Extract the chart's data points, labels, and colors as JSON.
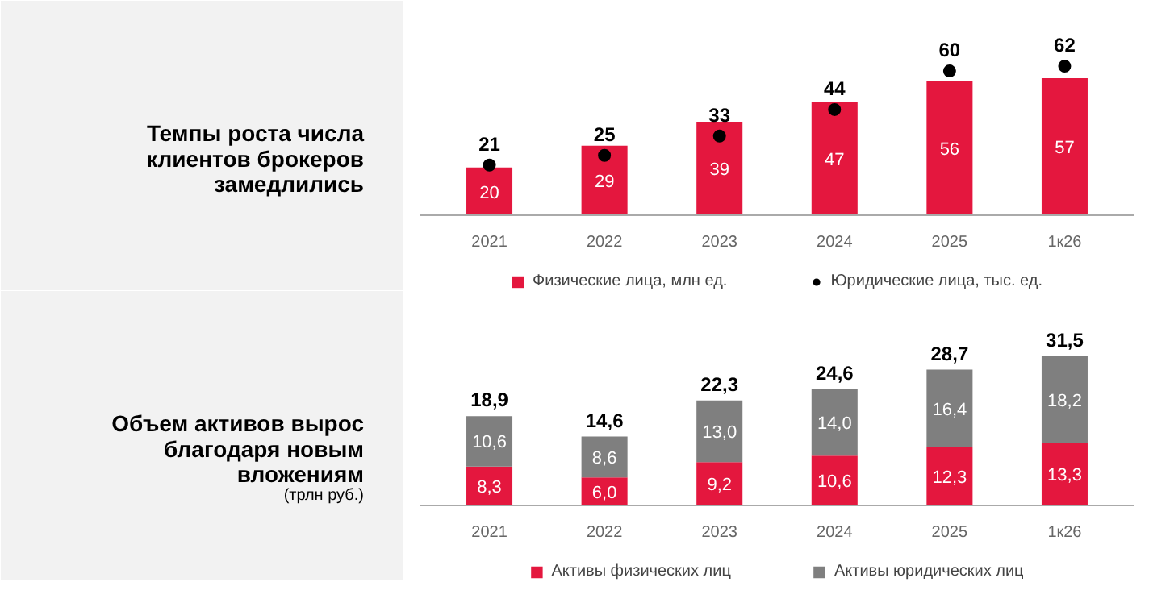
{
  "chart_data": [
    {
      "type": "bar",
      "title": "Темпы роста числа клиентов брокеров замедлились",
      "categories": [
        "2021",
        "2022",
        "2023",
        "2024",
        "2025",
        "1к26"
      ],
      "tick_labels": "x",
      "legend": "bottom",
      "data_labels": true,
      "series": [
        {
          "name": "Физические лица, млн ед.",
          "type": "bar",
          "color": "#e4173e",
          "values": [
            20,
            29,
            39,
            47,
            56,
            57
          ]
        },
        {
          "name": "Юридические лица, тыс. ед.",
          "type": "scatter",
          "marker": "circle",
          "color": "#000000",
          "values": [
            21,
            25,
            33,
            44,
            60,
            62
          ]
        }
      ]
    },
    {
      "type": "bar",
      "title": "Объем активов вырос благодаря новым вложениям",
      "subtitle": "(трлн руб.)",
      "categories": [
        "2021",
        "2022",
        "2023",
        "2024",
        "2025",
        "1к26"
      ],
      "tick_labels": "x",
      "legend": "bottom",
      "stacked": true,
      "totals": [
        "18,9",
        "14,6",
        "22,3",
        "24,6",
        "28,7",
        "31,5"
      ],
      "series": [
        {
          "name": "Активы физических лиц",
          "color": "#e4173e",
          "values": [
            8.3,
            6.0,
            9.2,
            10.6,
            12.3,
            13.3
          ],
          "value_labels": [
            "8,3",
            "6,0",
            "9,2",
            "10,6",
            "12,3",
            "13,3"
          ]
        },
        {
          "name": "Активы юридических лиц",
          "color": "#7f7f7f",
          "values": [
            10.6,
            8.6,
            13.0,
            14.0,
            16.4,
            18.2
          ],
          "value_labels": [
            "10,6",
            "8,6",
            "13,0",
            "14,0",
            "16,4",
            "18,2"
          ]
        }
      ]
    }
  ]
}
